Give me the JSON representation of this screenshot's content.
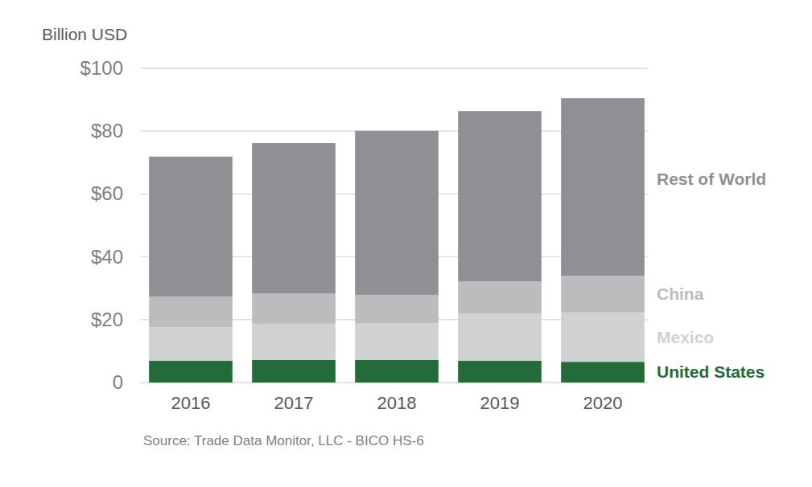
{
  "chart_data": {
    "type": "bar",
    "stacked": true,
    "y_label": "Billion USD",
    "source": "Source: Trade Data Monitor, LLC - BICO HS-6",
    "categories": [
      "2016",
      "2017",
      "2018",
      "2019",
      "2020"
    ],
    "series": [
      {
        "name": "United States",
        "color": "#236b38",
        "values": [
          6.9,
          7.2,
          7.2,
          6.9,
          6.6
        ]
      },
      {
        "name": "Mexico",
        "color": "#d0d1d3",
        "values": [
          10.7,
          11.5,
          11.7,
          15.1,
          15.7
        ]
      },
      {
        "name": "China",
        "color": "#bbbcbe",
        "values": [
          9.8,
          9.7,
          9.0,
          10.2,
          11.7
        ]
      },
      {
        "name": "Rest of World",
        "color": "#8f9093",
        "values": [
          44.5,
          47.8,
          52.2,
          54.2,
          56.5
        ]
      }
    ],
    "ylim": [
      0,
      100
    ],
    "yticks": [
      0,
      {
        "value": 20,
        "label": "$20"
      },
      {
        "value": 40,
        "label": "$40"
      },
      {
        "value": 60,
        "label": "$60"
      },
      {
        "value": 80,
        "label": "$80"
      },
      {
        "value": 100,
        "label": "$100"
      }
    ],
    "grid": true,
    "legend": "right"
  }
}
